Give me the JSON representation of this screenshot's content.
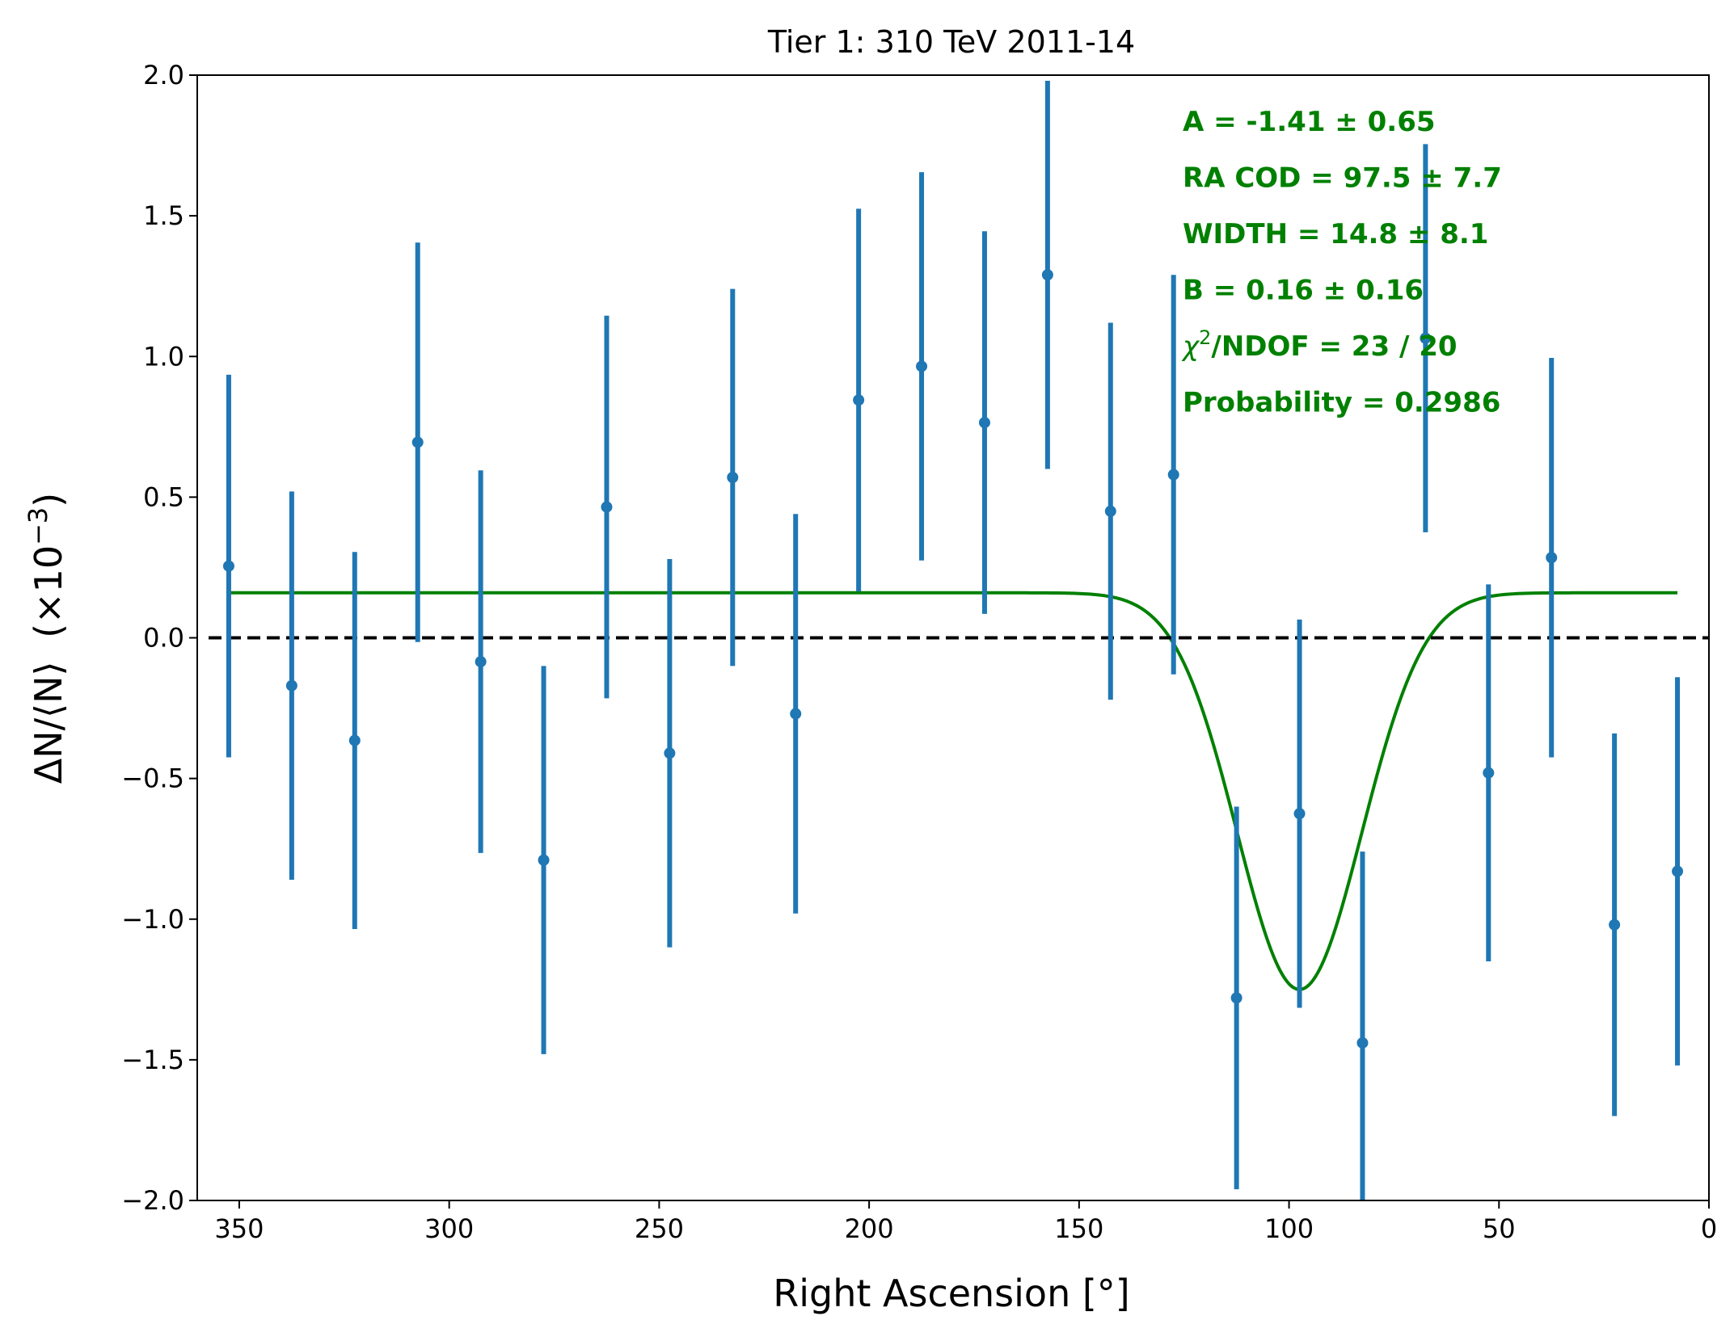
{
  "colors": {
    "data": "#1f77b4",
    "fit": "#008000",
    "reference": "#000000",
    "annotation": "#008000"
  },
  "chart_data": {
    "type": "scatter",
    "title": "Tier 1: 310 TeV 2011-14",
    "xlabel": "Right Ascension [°]",
    "ylabel_main": "ΔN/⟨N⟩",
    "ylabel_unit": "(×10",
    "ylabel_exp": "−3",
    "ylabel_close": ")",
    "xlim": [
      360,
      0
    ],
    "ylim": [
      -2.0,
      2.0
    ],
    "x_reversed": true,
    "grid": false,
    "xticks": [
      {
        "value": 350,
        "label": "350"
      },
      {
        "value": 300,
        "label": "300"
      },
      {
        "value": 250,
        "label": "250"
      },
      {
        "value": 200,
        "label": "200"
      },
      {
        "value": 150,
        "label": "150"
      },
      {
        "value": 100,
        "label": "100"
      },
      {
        "value": 50,
        "label": "50"
      },
      {
        "value": 0,
        "label": "0"
      }
    ],
    "yticks": [
      {
        "value": 2.0,
        "label": "2.0"
      },
      {
        "value": 1.5,
        "label": "1.5"
      },
      {
        "value": 1.0,
        "label": "1.0"
      },
      {
        "value": 0.5,
        "label": "0.5"
      },
      {
        "value": 0.0,
        "label": "0.0"
      },
      {
        "value": -0.5,
        "label": "−0.5"
      },
      {
        "value": -1.0,
        "label": "−1.0"
      },
      {
        "value": -1.5,
        "label": "−1.5"
      },
      {
        "value": -2.0,
        "label": "−2.0"
      }
    ],
    "reference_line": {
      "y": 0.0,
      "style": "dashed"
    },
    "data_points": [
      {
        "x": 352.5,
        "y": 0.255,
        "err": 0.68
      },
      {
        "x": 337.5,
        "y": -0.17,
        "err": 0.69
      },
      {
        "x": 322.5,
        "y": -0.365,
        "err": 0.67
      },
      {
        "x": 307.5,
        "y": 0.695,
        "err": 0.71
      },
      {
        "x": 292.5,
        "y": -0.085,
        "err": 0.68
      },
      {
        "x": 277.5,
        "y": -0.79,
        "err": 0.69
      },
      {
        "x": 262.5,
        "y": 0.465,
        "err": 0.68
      },
      {
        "x": 247.5,
        "y": -0.41,
        "err": 0.69
      },
      {
        "x": 232.5,
        "y": 0.57,
        "err": 0.67
      },
      {
        "x": 217.5,
        "y": -0.27,
        "err": 0.71
      },
      {
        "x": 202.5,
        "y": 0.845,
        "err": 0.68
      },
      {
        "x": 187.5,
        "y": 0.965,
        "err": 0.69
      },
      {
        "x": 172.5,
        "y": 0.765,
        "err": 0.68
      },
      {
        "x": 157.5,
        "y": 1.29,
        "err": 0.69
      },
      {
        "x": 142.5,
        "y": 0.45,
        "err": 0.67
      },
      {
        "x": 127.5,
        "y": 0.58,
        "err": 0.71
      },
      {
        "x": 112.5,
        "y": -1.28,
        "err": 0.68
      },
      {
        "x": 97.5,
        "y": -0.625,
        "err": 0.69
      },
      {
        "x": 82.5,
        "y": -1.44,
        "err": 0.68
      },
      {
        "x": 67.5,
        "y": 1.065,
        "err": 0.69
      },
      {
        "x": 52.5,
        "y": -0.48,
        "err": 0.67
      },
      {
        "x": 37.5,
        "y": 0.285,
        "err": 0.71
      },
      {
        "x": 22.5,
        "y": -1.02,
        "err": 0.68
      },
      {
        "x": 7.5,
        "y": -0.83,
        "err": 0.69
      }
    ],
    "fit": {
      "model": "gaussian",
      "amplitude": -1.41,
      "center": 97.5,
      "width": 14.8,
      "baseline": 0.16,
      "x_range": [
        352.5,
        7.5
      ]
    },
    "annotations": [
      {
        "text": "A = -1.41 ± 0.65"
      },
      {
        "text": "RA COD = 97.5 ± 7.7"
      },
      {
        "text": "WIDTH = 14.8 ± 8.1"
      },
      {
        "text": "B = 0.16 ± 0.16"
      },
      {
        "chi_symbol": "χ",
        "chi_sup": "2",
        "text": "/NDOF = 23 / 20"
      },
      {
        "text": "Probability = 0.2986"
      }
    ]
  }
}
